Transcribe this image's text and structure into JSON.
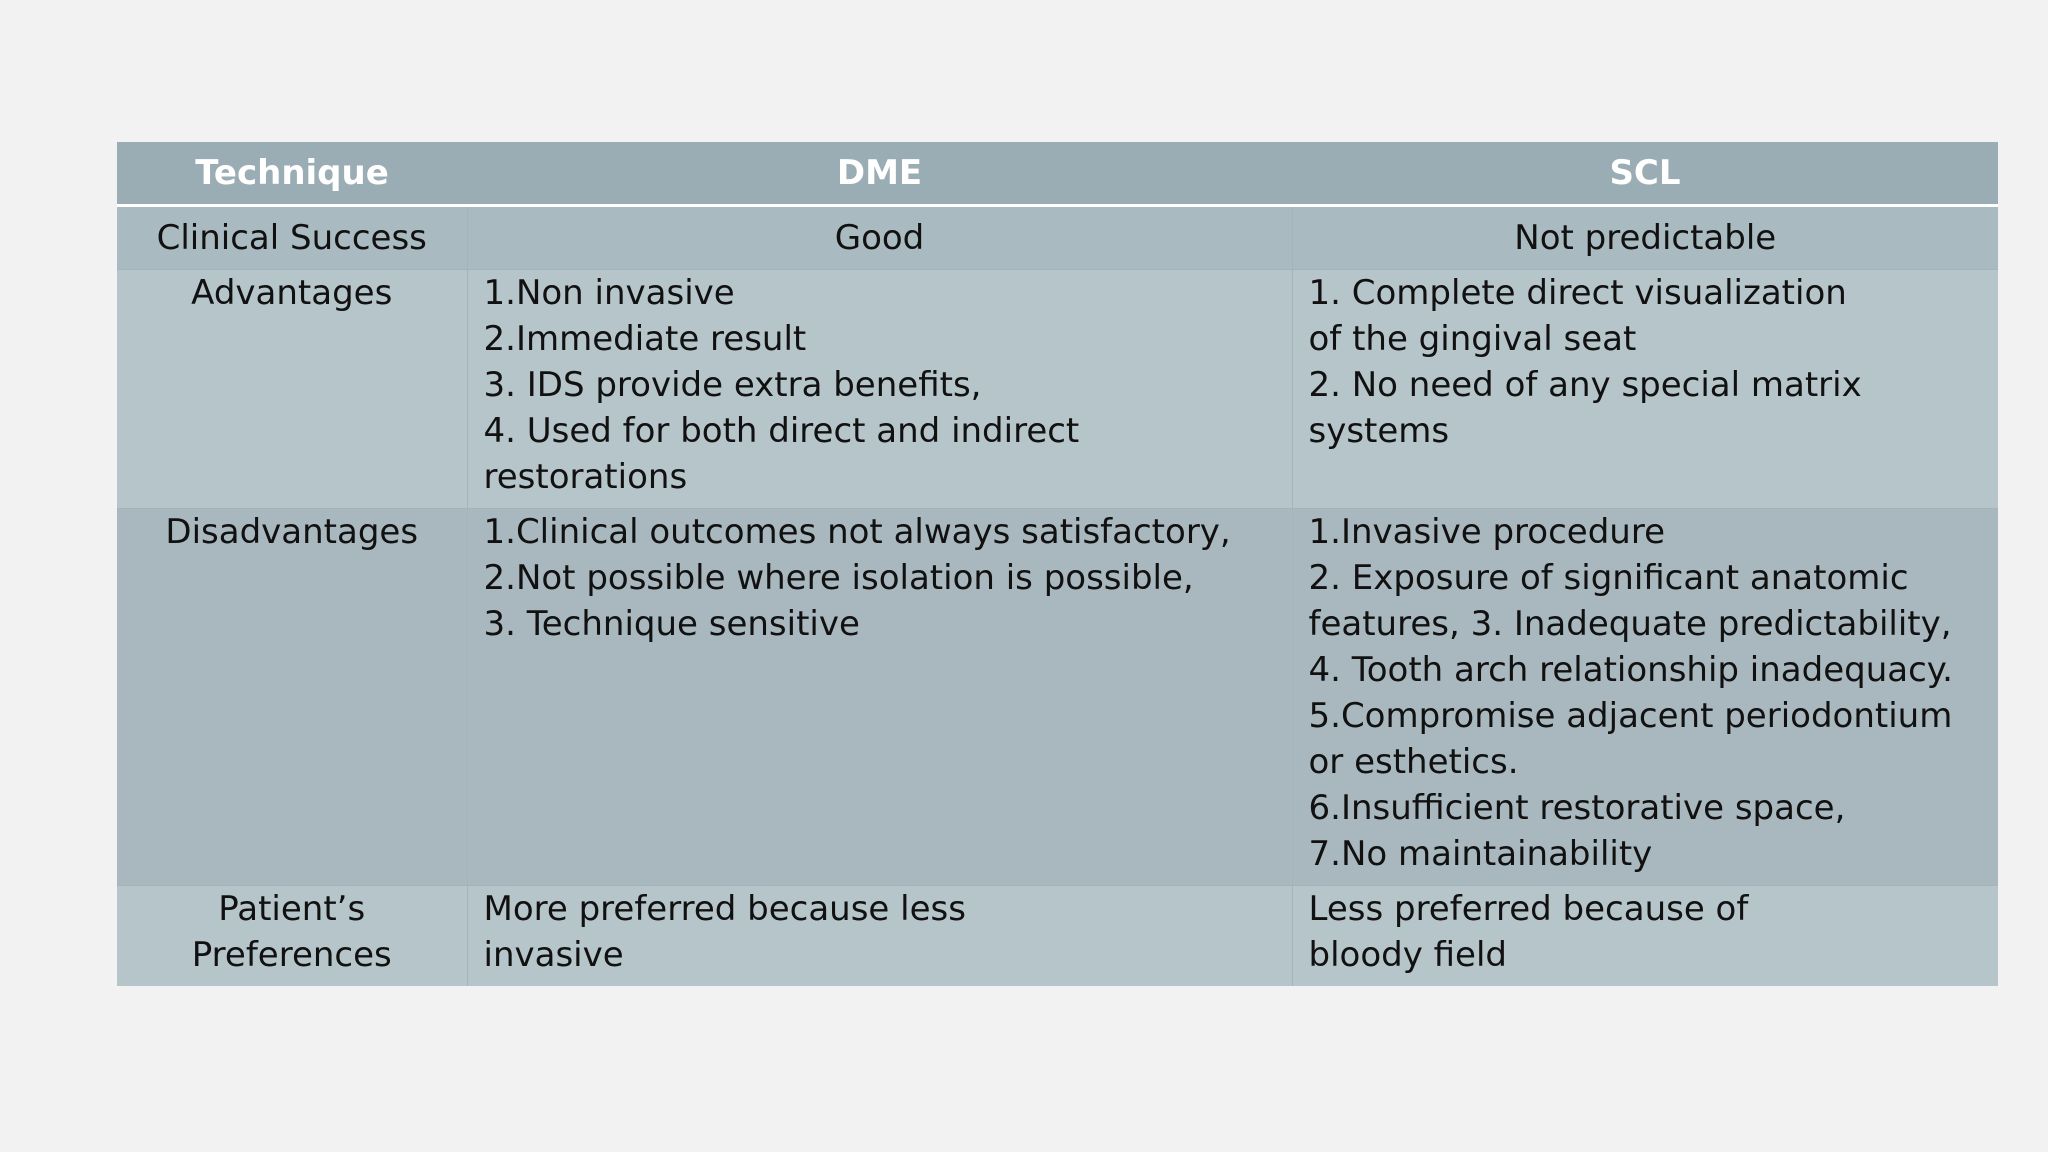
{
  "table": {
    "headers": [
      "Technique",
      "DME",
      "SCL"
    ],
    "rows": [
      {
        "label": "Clinical Success",
        "dme": [
          "Good"
        ],
        "scl": [
          "Not predictable"
        ]
      },
      {
        "label": "Advantages",
        "dme": [
          "1.Non invasive",
          "2.Immediate result",
          "3. IDS provide extra benefits,",
          "4. Used for both direct and indirect",
          "restorations"
        ],
        "scl": [
          "1. Complete direct visualization",
          "of the gingival seat",
          "2. No need of any special matrix",
          "systems"
        ]
      },
      {
        "label": "Disadvantages",
        "dme": [
          "1.Clinical outcomes not always satisfactory,",
          "2.Not possible where isolation is possible,",
          "3. Technique sensitive"
        ],
        "scl": [
          "1.Invasive procedure",
          "2. Exposure of significant anatomic",
          "features, 3. Inadequate predictability,",
          "4. Tooth arch relationship inadequacy.",
          "5.Compromise adjacent periodontium",
          "or esthetics.",
          "6.Insufficient restorative space,",
          "7.No maintainability"
        ]
      },
      {
        "label_lines": [
          "Patient’s",
          "Preferences"
        ],
        "dme": [
          "More preferred because less",
          "invasive"
        ],
        "scl": [
          "Less preferred because of",
          "bloody field"
        ]
      }
    ]
  }
}
